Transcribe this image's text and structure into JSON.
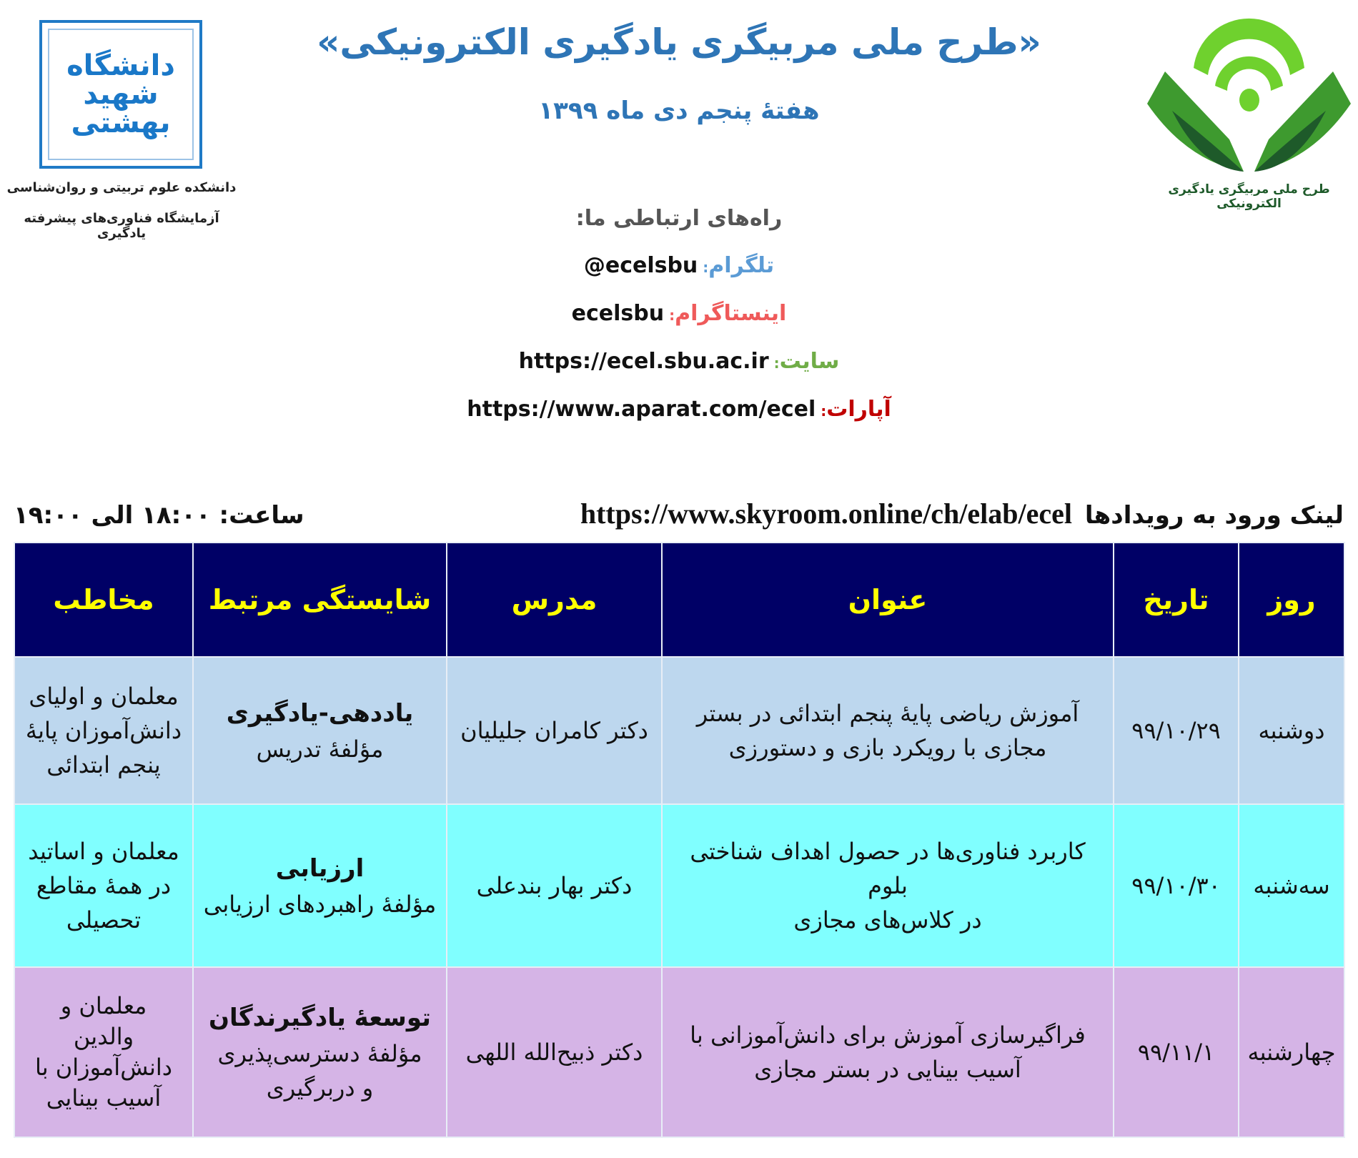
{
  "header": {
    "title": "«طرح ملی مربیگری یادگیری الکترونیکی»",
    "subtitle": "هفتهٔ پنجم دی ماه ۱۳۹۹"
  },
  "left_logo": {
    "logo_text": "دانشگاه شهید بهشتی",
    "caption_1": "دانشکده علوم تربیتی و روان‌شناسی",
    "caption_2": "آزمایشگاه فناوری‌های پیشرفته یادگیری"
  },
  "right_logo": {
    "caption": "طرح ملی مربیگری یادگیری الکترونیکی",
    "colors": {
      "light_green": "#6fd12e",
      "dark_green": "#2e7d32"
    }
  },
  "contact": {
    "heading": "راه‌های ارتباطی ما:",
    "items": [
      {
        "label": "تلگرام",
        "value": "@ecelsbu",
        "color": "#5b9bd5"
      },
      {
        "label": "اینستاگرام",
        "value": "ecelsbu",
        "color": "#ef5a5a"
      },
      {
        "label": "سایت",
        "value": "https://ecel.sbu.ac.ir",
        "color": "#70ad47"
      },
      {
        "label": "آپارات",
        "value": "https://www.aparat.com/ecel",
        "color": "#c00000"
      }
    ]
  },
  "events_link": {
    "label": "لینک ورود به رویدادها",
    "url": "https://www.skyroom.online/ch/elab/ecel",
    "time": "ساعت: ۱۸:۰۰ الی ۱۹:۰۰"
  },
  "table": {
    "headers": [
      "روز",
      "تاریخ",
      "عنوان",
      "مدرس",
      "شایستگی مرتبط",
      "مخاطب"
    ],
    "rows": [
      {
        "day": "دوشنبه",
        "date": "۹۹/۱۰/۲۹",
        "title": [
          "آموزش ریاضی پایهٔ پنجم ابتدائی در بستر",
          "مجازی با رویکرد بازی و دستورزی"
        ],
        "instructor": "دکتر کامران جلیلیان",
        "competency": "یاددهی-یادگیری",
        "component": [
          "مؤلفهٔ تدریس"
        ],
        "audience": [
          "معلمان و اولیای",
          "دانش‌آموزان پایهٔ",
          "پنجم ابتدائی"
        ]
      },
      {
        "day": "سه‌شنبه",
        "date": "۹۹/۱۰/۳۰",
        "title": [
          "کاربرد فناوری‌ها در حصول اهداف شناختی بلوم",
          "در کلاس‌های مجازی"
        ],
        "instructor": "دکتر بهار بندعلی",
        "competency": "ارزیابی",
        "component": [
          "مؤلفهٔ راهبردهای ارزیابی"
        ],
        "audience": [
          "معلمان و اساتید",
          "در همهٔ مقاطع",
          "تحصیلی"
        ]
      },
      {
        "day": "چهارشنبه",
        "date": "۹۹/۱۱/۱",
        "title": [
          "فراگیرسازی آموزش برای دانش‌آموزانی با",
          "آسیب بینایی در بستر مجازی"
        ],
        "instructor": "دکتر ذبیح‌الله اللهی",
        "competency": "توسعهٔ یادگیرندگان",
        "component": [
          "مؤلفهٔ دسترسی‌پذیری",
          "و دربرگیری"
        ],
        "audience": [
          "معلمان و",
          "والدین",
          "دانش‌آموزان با",
          "آسیب بینایی"
        ]
      }
    ],
    "colors": {
      "header_bg": "#000066",
      "header_text": "#ffff00",
      "row_1": "#bdd7ee",
      "row_2": "#80ffff",
      "row_3": "#d5b4e6"
    }
  }
}
